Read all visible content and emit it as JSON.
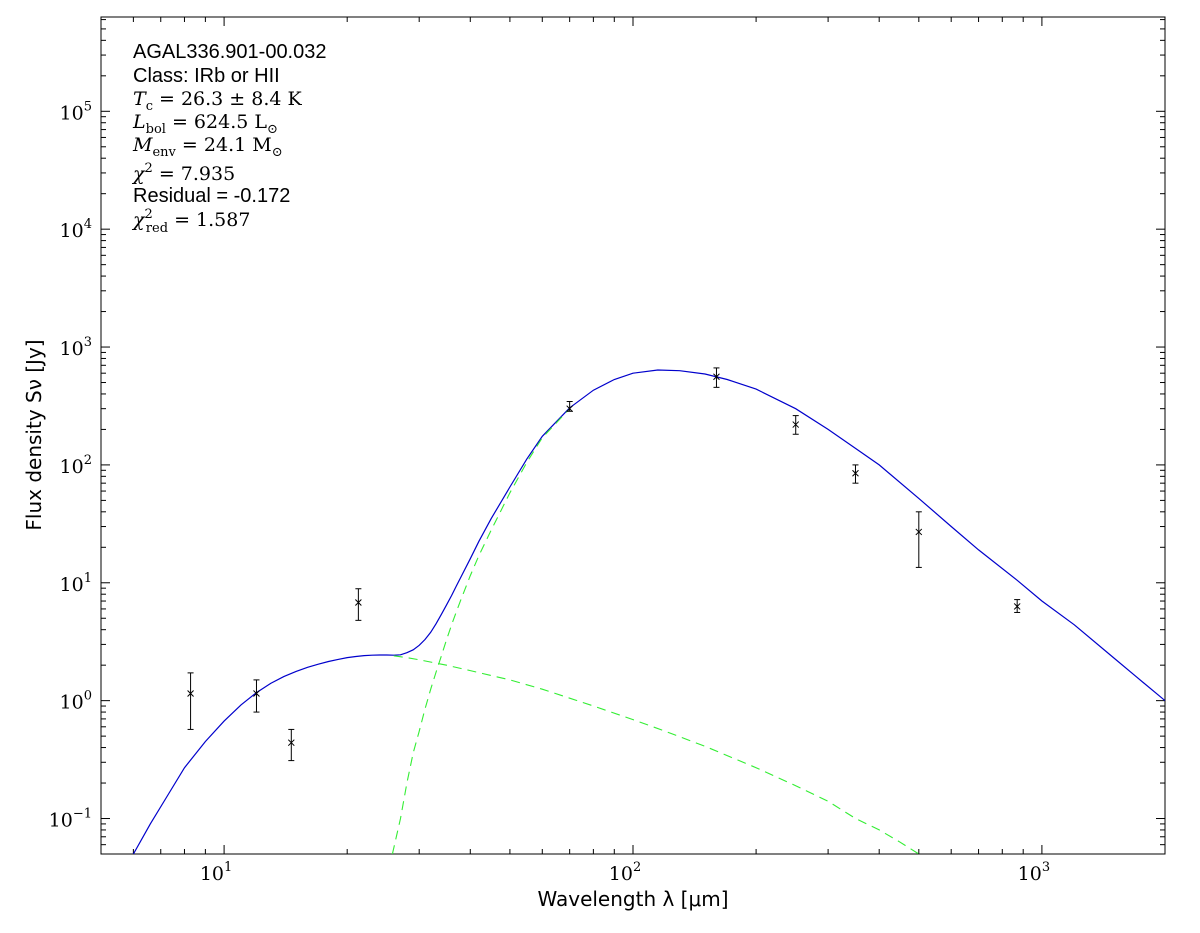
{
  "chart_data": {
    "type": "scatter",
    "title": "",
    "xlabel": "Wavelength λ [μm]",
    "ylabel": "Flux density Sν [Jy]",
    "xscale": "log",
    "yscale": "log",
    "xlim": [
      5,
      2000
    ],
    "ylim": [
      0.05,
      631000
    ],
    "grid": false,
    "x_ticks": [
      {
        "base": "10",
        "exp": "1",
        "value": 10
      },
      {
        "base": "10",
        "exp": "2",
        "value": 100
      },
      {
        "base": "10",
        "exp": "3",
        "value": 1000
      }
    ],
    "y_ticks": [
      {
        "base": "10",
        "exp": "−1",
        "value": 0.1
      },
      {
        "base": "10",
        "exp": "0",
        "value": 1
      },
      {
        "base": "10",
        "exp": "1",
        "value": 10
      },
      {
        "base": "10",
        "exp": "2",
        "value": 100
      },
      {
        "base": "10",
        "exp": "3",
        "value": 1000
      },
      {
        "base": "10",
        "exp": "4",
        "value": 10000
      },
      {
        "base": "10",
        "exp": "5",
        "value": 100000
      }
    ],
    "annotations": {
      "source": "AGAL336.901-00.032",
      "class": "Class: IRb or HII",
      "tc": {
        "sym": "T",
        "sub": "c",
        "rest": " = 26.3 ± 8.4 K"
      },
      "lbol": {
        "sym": "L",
        "sub": "bol",
        "rest": " = 624.5 L",
        "tail": "⊙"
      },
      "menv": {
        "sym": "M",
        "sub": "env",
        "rest": " = 24.1 M",
        "tail": "⊙"
      },
      "chi2": {
        "sym": "χ",
        "sup": "2",
        "rest": " = 7.935"
      },
      "residual": "Residual = -0.172",
      "chi2red": {
        "sym": "χ",
        "sup": "2",
        "sub": "red",
        "rest": " = 1.587"
      }
    },
    "series": [
      {
        "kind": "observed",
        "color": "#000000",
        "points": [
          {
            "x": 8.28,
            "y": 1.15,
            "lo": 0.57,
            "hi": 1.72
          },
          {
            "x": 12.0,
            "y": 1.15,
            "lo": 0.8,
            "hi": 1.5
          },
          {
            "x": 14.6,
            "y": 0.44,
            "lo": 0.31,
            "hi": 0.57
          },
          {
            "x": 21.3,
            "y": 6.8,
            "lo": 4.8,
            "hi": 8.9
          },
          {
            "x": 70,
            "y": 300,
            "lo": 285,
            "hi": 345
          },
          {
            "x": 160,
            "y": 560,
            "lo": 455,
            "hi": 665
          },
          {
            "x": 250,
            "y": 220,
            "lo": 182,
            "hi": 262
          },
          {
            "x": 350,
            "y": 85,
            "lo": 70,
            "hi": 100
          },
          {
            "x": 500,
            "y": 27,
            "lo": 13.5,
            "hi": 40
          },
          {
            "x": 870,
            "y": 6.3,
            "lo": 5.6,
            "hi": 7.2
          }
        ]
      },
      {
        "kind": "total-model",
        "color": "#0000cc",
        "points": [
          [
            6,
            0.05
          ],
          [
            6.6,
            0.09
          ],
          [
            7.3,
            0.16
          ],
          [
            8,
            0.27
          ],
          [
            9,
            0.45
          ],
          [
            10,
            0.67
          ],
          [
            11,
            0.92
          ],
          [
            12,
            1.17
          ],
          [
            13,
            1.4
          ],
          [
            14,
            1.6
          ],
          [
            15,
            1.77
          ],
          [
            16,
            1.92
          ],
          [
            17,
            2.04
          ],
          [
            18,
            2.15
          ],
          [
            19,
            2.24
          ],
          [
            20,
            2.32
          ],
          [
            21,
            2.37
          ],
          [
            22,
            2.41
          ],
          [
            23,
            2.43
          ],
          [
            24,
            2.44
          ],
          [
            25,
            2.44
          ],
          [
            26,
            2.43
          ],
          [
            27,
            2.45
          ],
          [
            28,
            2.55
          ],
          [
            29,
            2.7
          ],
          [
            30,
            2.95
          ],
          [
            31,
            3.3
          ],
          [
            32,
            3.8
          ],
          [
            33,
            4.5
          ],
          [
            34,
            5.4
          ],
          [
            35,
            6.5
          ],
          [
            36,
            7.8
          ],
          [
            37,
            9.4
          ],
          [
            38,
            11.3
          ],
          [
            40,
            16
          ],
          [
            42,
            22.5
          ],
          [
            45,
            35
          ],
          [
            50,
            65
          ],
          [
            55,
            112
          ],
          [
            60,
            175
          ],
          [
            70,
            305
          ],
          [
            80,
            430
          ],
          [
            90,
            530
          ],
          [
            100,
            600
          ],
          [
            115,
            638
          ],
          [
            130,
            630
          ],
          [
            150,
            590
          ],
          [
            170,
            530
          ],
          [
            200,
            440
          ],
          [
            250,
            300
          ],
          [
            300,
            200
          ],
          [
            350,
            138
          ],
          [
            400,
            100
          ],
          [
            500,
            52
          ],
          [
            600,
            30
          ],
          [
            700,
            19
          ],
          [
            870,
            10.5
          ],
          [
            1000,
            7
          ],
          [
            1200,
            4.4
          ],
          [
            1500,
            2.3
          ],
          [
            1700,
            1.6
          ],
          [
            2000,
            1
          ]
        ]
      },
      {
        "kind": "cold-component",
        "color": "#33ee33",
        "points": [
          [
            25.8,
            0.05
          ],
          [
            27,
            0.1
          ],
          [
            28,
            0.2
          ],
          [
            29,
            0.36
          ],
          [
            30,
            0.55
          ],
          [
            31,
            0.85
          ],
          [
            32,
            1.25
          ],
          [
            33,
            1.75
          ],
          [
            34,
            2.4
          ],
          [
            35,
            3.3
          ],
          [
            36,
            4.4
          ],
          [
            37,
            5.7
          ],
          [
            38,
            7.3
          ],
          [
            40,
            11.5
          ],
          [
            42,
            17
          ],
          [
            45,
            28
          ],
          [
            50,
            58
          ],
          [
            55,
            105
          ],
          [
            60,
            170
          ],
          [
            70,
            300
          ]
        ]
      },
      {
        "kind": "warm-component",
        "color": "#33ee33",
        "points": [
          [
            26,
            2.4
          ],
          [
            28,
            2.32
          ],
          [
            30,
            2.22
          ],
          [
            35,
            2.0
          ],
          [
            40,
            1.8
          ],
          [
            50,
            1.5
          ],
          [
            60,
            1.25
          ],
          [
            70,
            1.05
          ],
          [
            80,
            0.9
          ],
          [
            100,
            0.69
          ],
          [
            120,
            0.55
          ],
          [
            150,
            0.41
          ],
          [
            200,
            0.27
          ],
          [
            250,
            0.19
          ],
          [
            300,
            0.14
          ],
          [
            350,
            0.1
          ],
          [
            400,
            0.08
          ],
          [
            450,
            0.063
          ],
          [
            500,
            0.05
          ]
        ]
      }
    ]
  }
}
